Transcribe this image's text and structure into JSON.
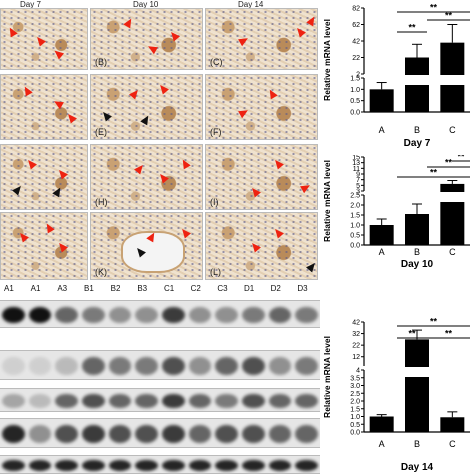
{
  "day_headers": [
    "Day 7",
    "Day 10",
    "Day 14"
  ],
  "panel_labels": [
    "(B)",
    "(C)",
    "(E)",
    "(F)",
    "(H)",
    "(I)",
    "(K)",
    "(L)"
  ],
  "lanes": [
    "A1",
    "A1",
    "A3",
    "B1",
    "B2",
    "B3",
    "C1",
    "C2",
    "C3",
    "D1",
    "D2",
    "D3"
  ],
  "colors": {
    "arrow_red": "#e02010",
    "arrow_black": "#111111",
    "bar": "#000000"
  },
  "charts": [
    {
      "type": "bar",
      "caption": "Day 7",
      "ylabel": "Relative mRNA level",
      "categories": [
        "A",
        "B",
        "C"
      ],
      "values": [
        1.0,
        22,
        40
      ],
      "errors": [
        0.3,
        16,
        22
      ],
      "yticks": [
        "0.0",
        "0.5",
        "1.0",
        "1.5",
        "2",
        "22",
        "42",
        "62",
        "82"
      ],
      "sig": [
        "**",
        "**",
        "**"
      ]
    },
    {
      "type": "bar",
      "caption": "Day 10",
      "ylabel": "Relative mRNA level",
      "categories": [
        "A",
        "B",
        "C"
      ],
      "values": [
        1.0,
        1.55,
        5.5
      ],
      "errors": [
        0.3,
        0.5,
        1.2
      ],
      "yticks": [
        "0.0",
        "0.5",
        "1.0",
        "1.5",
        "2.0",
        "2.5",
        "3",
        "5",
        "7",
        "9",
        "11",
        "13",
        "15"
      ],
      "sig": [
        "**",
        "**",
        "**"
      ]
    },
    {
      "type": "bar",
      "caption": "Day 14",
      "ylabel": "Relative mRNA level",
      "categories": [
        "A",
        "B",
        "C"
      ],
      "values": [
        1.0,
        27,
        0.95
      ],
      "errors": [
        0.12,
        8,
        0.35
      ],
      "yticks": [
        "0.0",
        "0.5",
        "1.0",
        "1.5",
        "2.0",
        "2.5",
        "3.0",
        "3.5",
        "4",
        "12",
        "22",
        "32",
        "42"
      ],
      "sig": [
        "**",
        "**",
        "**",
        "**"
      ]
    }
  ]
}
